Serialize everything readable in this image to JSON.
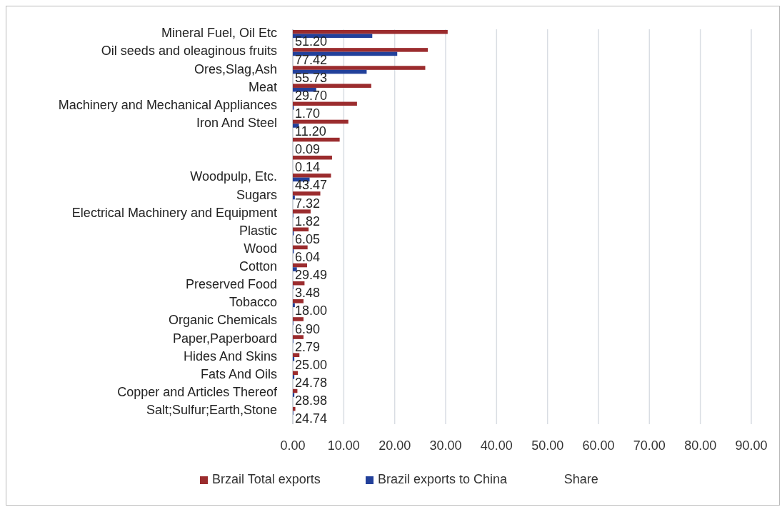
{
  "chart_data": {
    "type": "bar",
    "orientation": "horizontal",
    "categories": [
      "Mineral Fuel, Oil Etc",
      "Oil seeds and oleaginous fruits",
      "Ores,Slag,Ash",
      "Meat",
      "Machinery and Mechanical Appliances",
      "Iron And Steel",
      null,
      null,
      "Woodpulp, Etc.",
      "Sugars",
      "Electrical Machinery and Equipment",
      "Plastic",
      "Wood",
      "Cotton",
      "Preserved Food",
      "Tobacco",
      "Organic Chemicals",
      "Paper,Paperboard",
      "Hides And Skins",
      "Fats And Oils",
      "Copper and Articles Thereof",
      "Salt;Sulfur;Earth,Stone"
    ],
    "series": [
      {
        "name": "Brzail Total exports",
        "color": "#9b2c2e",
        "values": [
          30.4,
          26.5,
          26.0,
          15.4,
          12.6,
          10.9,
          9.2,
          7.7,
          7.5,
          5.4,
          3.5,
          3.1,
          2.9,
          2.8,
          2.3,
          2.1,
          2.1,
          2.1,
          1.3,
          1.0,
          0.9,
          0.5
        ]
      },
      {
        "name": "Brazil exports to China",
        "color": "#22409a",
        "values": [
          15.6,
          20.5,
          14.5,
          4.6,
          0.2,
          1.2,
          0.0,
          0.0,
          3.3,
          0.4,
          0.1,
          0.2,
          0.2,
          0.8,
          0.1,
          0.4,
          0.1,
          0.1,
          0.3,
          0.3,
          0.3,
          0.1
        ]
      },
      {
        "name": "Share",
        "values": [
          null,
          null,
          null,
          null,
          null,
          null,
          null,
          null,
          null,
          null,
          null,
          null,
          null,
          null,
          null,
          null,
          null,
          null,
          null,
          null,
          null,
          null
        ],
        "value_labels": [
          "51.20",
          "77.42",
          "55.73",
          "29.70",
          "1.70",
          "11.20",
          "0.09",
          "0.14",
          "43.47",
          "7.32",
          "1.82",
          "6.05",
          "6.04",
          "29.49",
          "3.48",
          "18.00",
          "6.90",
          "2.79",
          "25.00",
          "24.78",
          "28.98",
          "24.74"
        ]
      }
    ],
    "xlim": [
      0,
      90
    ],
    "xticks": [
      {
        "value": 0,
        "label": "0.00"
      },
      {
        "value": 10,
        "label": "10.00"
      },
      {
        "value": 20,
        "label": "20.00"
      },
      {
        "value": 30,
        "label": "30.00"
      },
      {
        "value": 40,
        "label": "40.00"
      },
      {
        "value": 50,
        "label": "50.00"
      },
      {
        "value": 60,
        "label": "60.00"
      },
      {
        "value": 70,
        "label": "70.00"
      },
      {
        "value": 80,
        "label": "80.00"
      },
      {
        "value": 90,
        "label": "90.00"
      }
    ],
    "grid": "x",
    "legend": "bottom"
  }
}
